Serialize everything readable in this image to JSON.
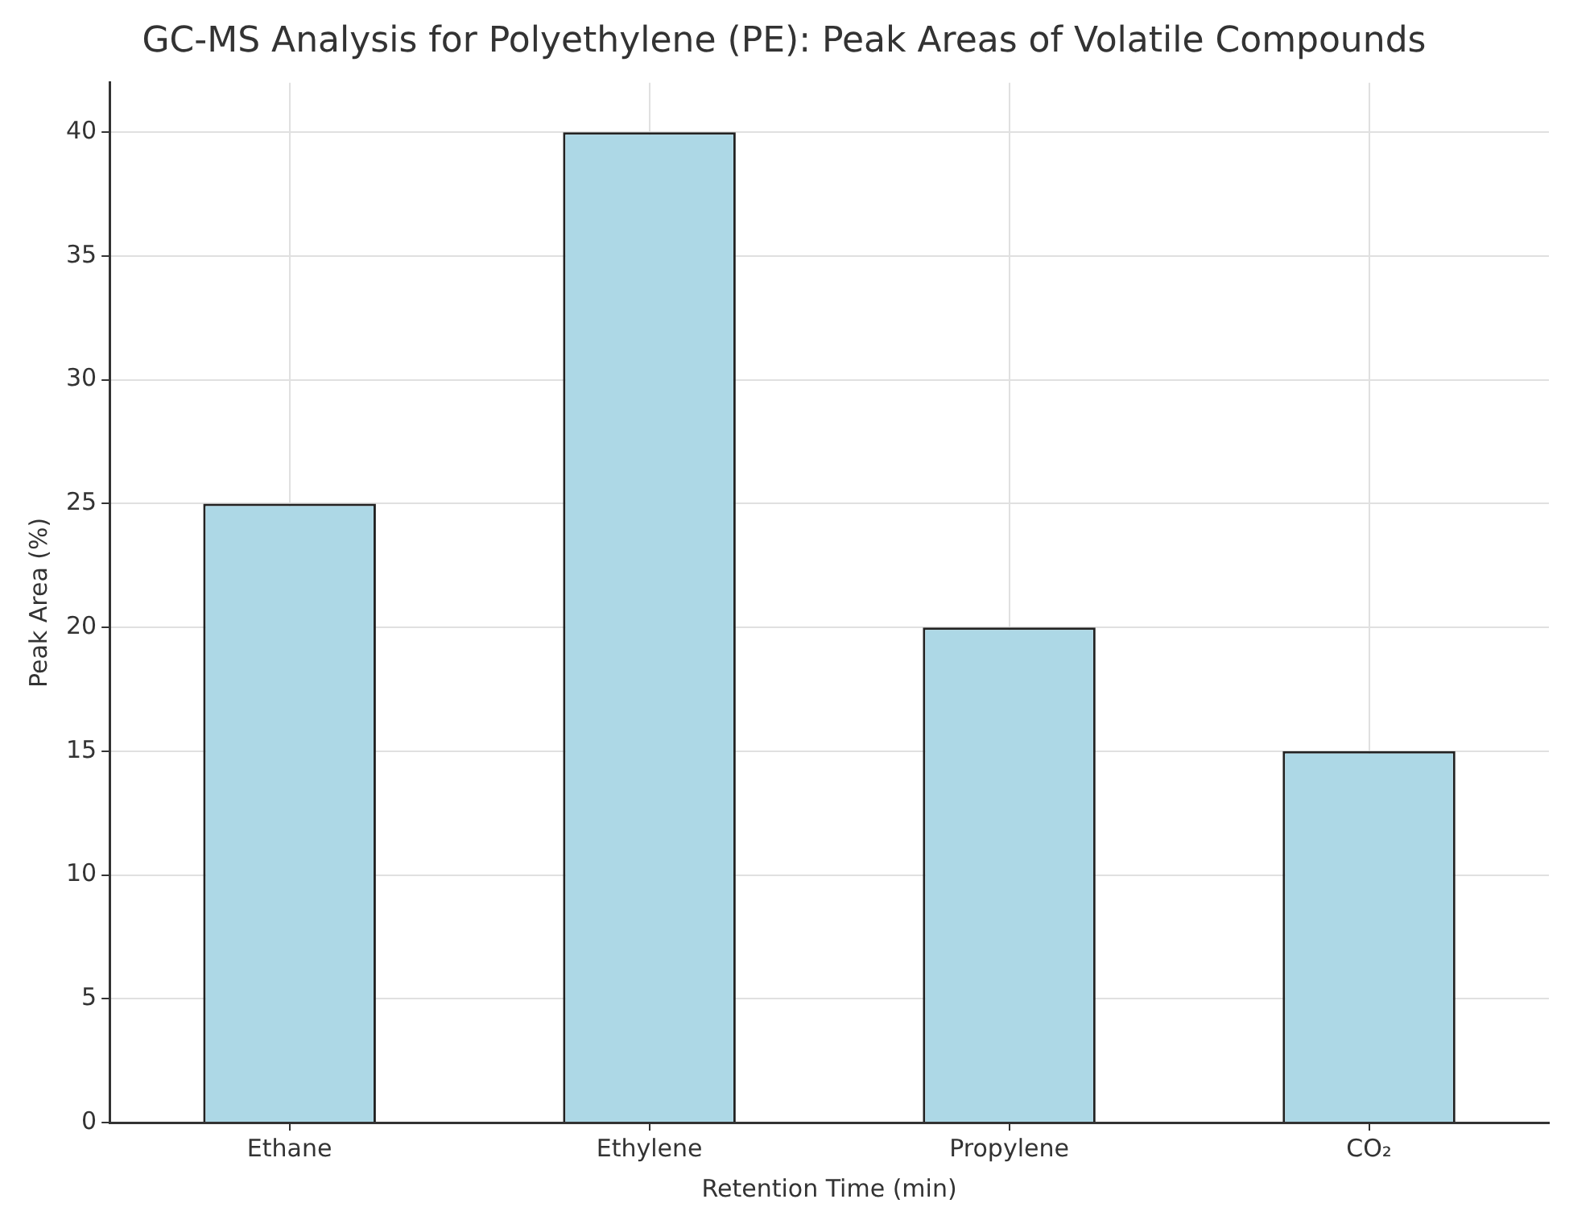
{
  "chart_data": {
    "type": "bar",
    "title": "GC-MS Analysis for Polyethylene (PE): Peak Areas of Volatile Compounds",
    "xlabel": "Retention Time (min)",
    "ylabel": "Peak Area (%)",
    "categories": [
      "Ethane",
      "Ethylene",
      "Propylene",
      "CO₂"
    ],
    "values": [
      25,
      40,
      20,
      15
    ],
    "color": "#add8e6",
    "ylim": [
      0,
      42
    ],
    "yticks": [
      0,
      5,
      10,
      15,
      20,
      25,
      30,
      35,
      40
    ],
    "grid": true
  }
}
